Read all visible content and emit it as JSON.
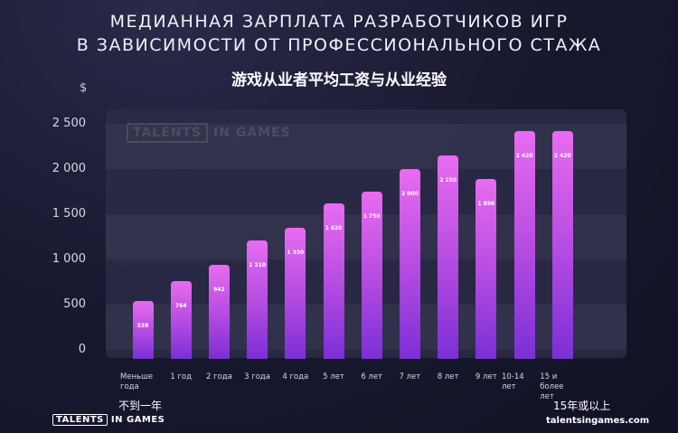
{
  "header": {
    "title_line1": "МЕДИАННАЯ ЗАРПЛАТА РАЗРАБОТЧИКОВ ИГР",
    "title_line2": "В ЗАВИСИМОСТИ ОТ ПРОФЕССИОНАЛЬНОГО СТАЖА",
    "subtitle": "游戏从业者平均工资与从业经验"
  },
  "chart_data": {
    "type": "bar",
    "ylabel": "$",
    "ylim": [
      0,
      2500
    ],
    "yticks": [
      "0",
      "500",
      "1 000",
      "1 500",
      "2 000",
      "2 500"
    ],
    "categories": [
      "Меньше года",
      "1 год",
      "2 года",
      "3 года",
      "4 года",
      "5 лет",
      "6 лет",
      "7 лет",
      "8 лет",
      "9 лет",
      "10-14 лет",
      "15 и более лет"
    ],
    "values": [
      538,
      764,
      942,
      1210,
      1350,
      1620,
      1750,
      2000,
      2150,
      1890,
      2420,
      2420
    ],
    "value_labels": [
      "538",
      "764",
      "942",
      "1 210",
      "1 350",
      "1 620",
      "1 750",
      "2 000",
      "2 150",
      "1 890",
      "2 420",
      "2 420"
    ],
    "colors": {
      "bar_top": "#e76cf0",
      "bar_bottom": "#7b2fd6",
      "background": "#15152b"
    },
    "grid": false
  },
  "annotations": {
    "first_category_note": "不到一年",
    "last_category_note": "15年或以上"
  },
  "footer": {
    "logo_part1": "TALENTS",
    "logo_part2": "IN GAMES",
    "website": "talentsingames.com"
  },
  "watermark": {
    "part1": "TALENTS",
    "part2": "IN GAMES"
  }
}
